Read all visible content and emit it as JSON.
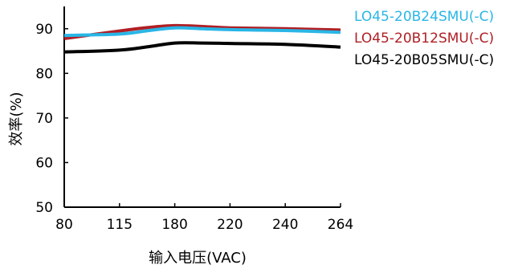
{
  "chart_data": {
    "type": "line",
    "title": "",
    "xlabel": "输入电压(VAC)",
    "ylabel": "效率(%)",
    "x_ticks": [
      "80",
      "115",
      "180",
      "220",
      "240",
      "264"
    ],
    "y_ticks": [
      "50",
      "60",
      "70",
      "80",
      "90"
    ],
    "ylim": [
      50,
      95
    ],
    "grid": false,
    "legend_placement": "right",
    "series": [
      {
        "name": "LO45-20B24SMU(-C)",
        "color": "#29B6E6",
        "values": [
          {
            "x": 80,
            "y": 88.5
          },
          {
            "x": 115,
            "y": 88.8
          },
          {
            "x": 150,
            "y": 89.6
          },
          {
            "x": 180,
            "y": 90.2
          },
          {
            "x": 200,
            "y": 90.0
          },
          {
            "x": 220,
            "y": 89.8
          },
          {
            "x": 240,
            "y": 89.6
          },
          {
            "x": 264,
            "y": 89.2
          }
        ]
      },
      {
        "name": "LO45-20B12SMU(-C)",
        "color": "#B01F24",
        "values": [
          {
            "x": 80,
            "y": 87.8
          },
          {
            "x": 115,
            "y": 89.5
          },
          {
            "x": 150,
            "y": 90.3
          },
          {
            "x": 180,
            "y": 90.7
          },
          {
            "x": 200,
            "y": 90.5
          },
          {
            "x": 220,
            "y": 90.2
          },
          {
            "x": 240,
            "y": 90.0
          },
          {
            "x": 264,
            "y": 89.7
          }
        ]
      },
      {
        "name": "LO45-20B05SMU(-C)",
        "color": "#000000",
        "values": [
          {
            "x": 80,
            "y": 84.8
          },
          {
            "x": 115,
            "y": 85.2
          },
          {
            "x": 150,
            "y": 86.0
          },
          {
            "x": 180,
            "y": 86.8
          },
          {
            "x": 200,
            "y": 86.8
          },
          {
            "x": 220,
            "y": 86.7
          },
          {
            "x": 240,
            "y": 86.5
          },
          {
            "x": 264,
            "y": 85.9
          }
        ]
      }
    ]
  }
}
